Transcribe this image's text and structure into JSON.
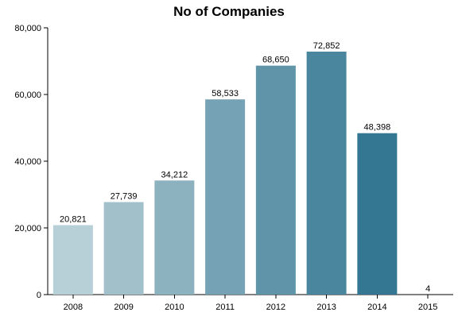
{
  "chart_data": {
    "type": "bar",
    "title": "No of Companies",
    "xlabel": "",
    "ylabel": "",
    "categories": [
      "2008",
      "2009",
      "2010",
      "2011",
      "2012",
      "2013",
      "2014",
      "2015"
    ],
    "values": [
      20821,
      27739,
      34212,
      58533,
      68650,
      72852,
      48398,
      4
    ],
    "value_labels": [
      "20,821",
      "27,739",
      "34,212",
      "58,533",
      "68,650",
      "72,852",
      "48,398",
      "4"
    ],
    "ylim": [
      0,
      80000
    ],
    "yticks": [
      0,
      20000,
      40000,
      60000,
      80000
    ],
    "ytick_labels": [
      "0",
      "20,000",
      "40,000",
      "60,000",
      "80,000"
    ],
    "grid": false,
    "legend": "none",
    "colors": [
      "#b7cfd7",
      "#a2c0ca",
      "#8cb1bf",
      "#75a2b4",
      "#5f94a9",
      "#4a869e",
      "#337793",
      "#206b89"
    ]
  }
}
